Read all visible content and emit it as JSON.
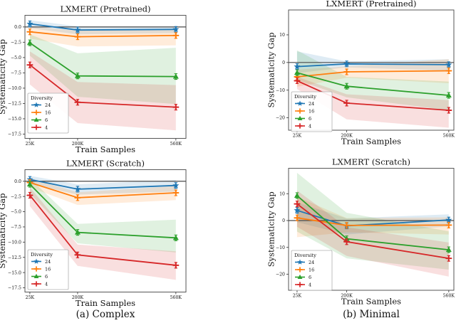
{
  "figure": {
    "rows": [
      "LXMERT (Pretrained)",
      "LXMERT (Scratch)"
    ],
    "columns": [
      "Complex",
      "Minimal"
    ]
  },
  "captions": [
    {
      "label": "(a) Complex"
    },
    {
      "label": "(b) Minimal"
    }
  ],
  "chart_data": [
    {
      "type": "line",
      "panel": "complex-pretrained",
      "title": "LXMERT (Pretrained)",
      "xlabel": "Train Samples",
      "ylabel": "Systematicity Gap",
      "x_values": [
        25,
        200,
        560
      ],
      "xtick_labels": [
        "25K",
        "200K",
        "560K"
      ],
      "xlim": [
        7,
        597
      ],
      "ylim": [
        -18.2,
        1.9
      ],
      "yticks": [
        {
          "v": 0,
          "label": "0.0"
        },
        {
          "v": -2.5,
          "label": "−2.5"
        },
        {
          "v": -5,
          "label": "−5.0"
        },
        {
          "v": -7.5,
          "label": "−7.5"
        },
        {
          "v": -10,
          "label": "−10.0"
        },
        {
          "v": -12.5,
          "label": "−12.5"
        },
        {
          "v": -15,
          "label": "−15.0"
        },
        {
          "v": -17.5,
          "label": "−17.5"
        }
      ],
      "zero_line": true,
      "grid": false,
      "legend": {
        "title": "Diversity",
        "position": "lower left"
      },
      "series": [
        {
          "name": "24",
          "color": "#1f77b4",
          "marker": "star",
          "values": [
            0.5,
            -0.5,
            -0.4
          ],
          "band_lo": [
            -0.2,
            -1.2,
            -1.0
          ],
          "band_hi": [
            1.1,
            0.1,
            0.1
          ]
        },
        {
          "name": "16",
          "color": "#ff7f0e",
          "marker": "plus",
          "values": [
            -0.8,
            -1.6,
            -1.4
          ],
          "band_lo": [
            -1.9,
            -3.2,
            -3.0
          ],
          "band_hi": [
            0.1,
            -0.6,
            -0.5
          ]
        },
        {
          "name": "6",
          "color": "#2ca02c",
          "marker": "triangle",
          "values": [
            -2.6,
            -8.0,
            -8.1
          ],
          "band_lo": [
            -4.7,
            -11.4,
            -12.6
          ],
          "band_hi": [
            -1.2,
            -4.3,
            -3.4
          ]
        },
        {
          "name": "4",
          "color": "#d62728",
          "marker": "plus",
          "values": [
            -6.2,
            -12.3,
            -13.1
          ],
          "band_lo": [
            -9.4,
            -15.7,
            -16.9
          ],
          "band_hi": [
            -4.0,
            -9.0,
            -9.5
          ]
        }
      ]
    },
    {
      "type": "line",
      "panel": "minimal-pretrained",
      "title": "LXMERT (Pretrained)",
      "xlabel": "Train Samples",
      "ylabel": "Systematicity Gap",
      "x_values": [
        25,
        200,
        560
      ],
      "xtick_labels": [
        "25K",
        "200K",
        "560K"
      ],
      "xlim": [
        -5,
        578
      ],
      "ylim": [
        -24.5,
        19
      ],
      "yticks": [
        {
          "v": 10,
          "label": "10"
        },
        {
          "v": 0,
          "label": "0"
        },
        {
          "v": -10,
          "label": "−10"
        },
        {
          "v": -20,
          "label": "−20"
        }
      ],
      "zero_line": true,
      "grid": false,
      "legend": {
        "title": "Diversity",
        "position": "lower left"
      },
      "series": [
        {
          "name": "24",
          "color": "#1f77b4",
          "marker": "star",
          "values": [
            -1.5,
            -0.5,
            -0.8
          ],
          "band_lo": [
            -3.8,
            -1.8,
            -2.9
          ],
          "band_hi": [
            4.0,
            0.4,
            1.2
          ]
        },
        {
          "name": "16",
          "color": "#ff7f0e",
          "marker": "plus",
          "values": [
            -5.2,
            -3.4,
            -3.0
          ],
          "band_lo": [
            -8.8,
            -5.5,
            -7.5
          ],
          "band_hi": [
            -2.6,
            -1.4,
            1.2
          ]
        },
        {
          "name": "6",
          "color": "#2ca02c",
          "marker": "triangle",
          "values": [
            -3.7,
            -8.6,
            -11.9
          ],
          "band_lo": [
            -6.3,
            -12.6,
            -17.3
          ],
          "band_hi": [
            4.4,
            -5.2,
            -6.9
          ]
        },
        {
          "name": "4",
          "color": "#d62728",
          "marker": "plus",
          "values": [
            -6.6,
            -14.7,
            -17.3
          ],
          "band_lo": [
            -9.6,
            -20.6,
            -23.6
          ],
          "band_hi": [
            -5.2,
            -11.5,
            -13.6
          ]
        }
      ]
    },
    {
      "type": "line",
      "panel": "complex-scratch",
      "title": "LXMERT (Scratch)",
      "xlabel": "Train Samples",
      "ylabel": "Systematicity Gap",
      "x_values": [
        25,
        200,
        560
      ],
      "xtick_labels": [
        "25K",
        "200K",
        "560K"
      ],
      "xlim": [
        7,
        597
      ],
      "ylim": [
        -18.2,
        1.9
      ],
      "yticks": [
        {
          "v": 0,
          "label": "0.0"
        },
        {
          "v": -2.5,
          "label": "−2.5"
        },
        {
          "v": -5,
          "label": "−5.0"
        },
        {
          "v": -7.5,
          "label": "−7.5"
        },
        {
          "v": -10,
          "label": "−10.0"
        },
        {
          "v": -12.5,
          "label": "−12.5"
        },
        {
          "v": -15,
          "label": "−15.0"
        },
        {
          "v": -17.5,
          "label": "−17.5"
        }
      ],
      "zero_line": true,
      "grid": false,
      "legend": {
        "title": "Diversity",
        "position": "lower left"
      },
      "series": [
        {
          "name": "24",
          "color": "#1f77b4",
          "marker": "star",
          "values": [
            0.3,
            -1.3,
            -0.7
          ],
          "band_lo": [
            -0.4,
            -2.2,
            -1.7
          ],
          "band_hi": [
            0.9,
            -0.5,
            0.2
          ]
        },
        {
          "name": "16",
          "color": "#ff7f0e",
          "marker": "plus",
          "values": [
            -0.2,
            -2.7,
            -1.9
          ],
          "band_lo": [
            -1.0,
            -3.9,
            -3.1
          ],
          "band_hi": [
            0.5,
            -1.8,
            -0.8
          ]
        },
        {
          "name": "6",
          "color": "#2ca02c",
          "marker": "triangle",
          "values": [
            -0.5,
            -8.4,
            -9.3
          ],
          "band_lo": [
            -2.0,
            -10.2,
            -11.7
          ],
          "band_hi": [
            0.5,
            -7.0,
            -6.3
          ]
        },
        {
          "name": "4",
          "color": "#d62728",
          "marker": "plus",
          "values": [
            -2.3,
            -12.1,
            -13.8
          ],
          "band_lo": [
            -4.1,
            -13.9,
            -16.2
          ],
          "band_hi": [
            -1.0,
            -10.4,
            -11.5
          ]
        }
      ]
    },
    {
      "type": "line",
      "panel": "minimal-scratch",
      "title": "LXMERT (Scratch)",
      "xlabel": "Train Samples",
      "ylabel": "Systematicity Gap",
      "x_values": [
        25,
        200,
        560
      ],
      "xtick_labels": [
        "25K",
        "200K",
        "560K"
      ],
      "xlim": [
        -5,
        578
      ],
      "ylim": [
        -26,
        19.5
      ],
      "yticks": [
        {
          "v": 10,
          "label": "10"
        },
        {
          "v": 0,
          "label": "0"
        },
        {
          "v": -10,
          "label": "−10"
        },
        {
          "v": -20,
          "label": "−20"
        }
      ],
      "zero_line": true,
      "grid": false,
      "legend": {
        "title": "Diversity",
        "position": "lower left"
      },
      "series": [
        {
          "name": "24",
          "color": "#1f77b4",
          "marker": "star",
          "values": [
            3.8,
            -2.0,
            0.2
          ],
          "band_lo": [
            -0.6,
            -5.2,
            -2.2
          ],
          "band_hi": [
            6.8,
            0.8,
            2.3
          ]
        },
        {
          "name": "16",
          "color": "#ff7f0e",
          "marker": "plus",
          "values": [
            1.0,
            -1.8,
            -1.7
          ],
          "band_lo": [
            -6.2,
            -4.4,
            -5.2
          ],
          "band_hi": [
            8.9,
            0.9,
            1.2
          ]
        },
        {
          "name": "6",
          "color": "#2ca02c",
          "marker": "triangle",
          "values": [
            9.3,
            -6.8,
            -10.9
          ],
          "band_lo": [
            -4.1,
            -14.1,
            -18.3
          ],
          "band_hi": [
            17.8,
            2.9,
            -4.0
          ]
        },
        {
          "name": "4",
          "color": "#d62728",
          "marker": "plus",
          "values": [
            6.2,
            -7.9,
            -14.1
          ],
          "band_lo": [
            -2.3,
            -13.2,
            -20.9
          ],
          "band_hi": [
            11.2,
            -2.5,
            -8.2
          ]
        }
      ]
    }
  ]
}
